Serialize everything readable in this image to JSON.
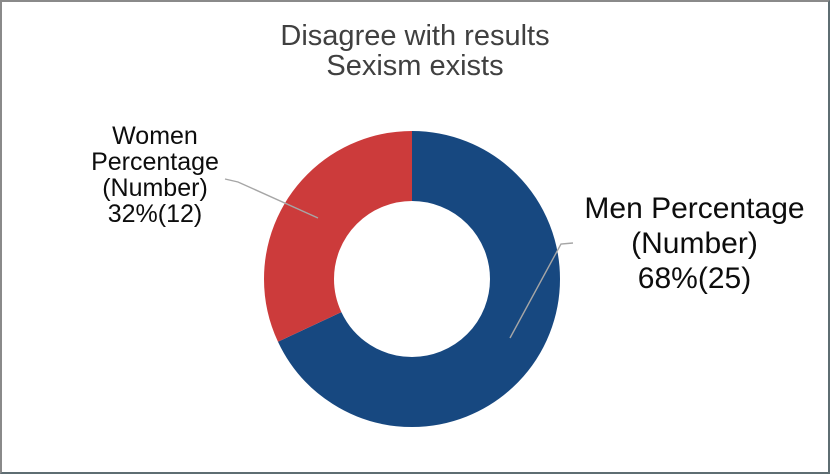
{
  "chart_data": {
    "type": "pie",
    "subtype": "donut",
    "title": "Disagree with results",
    "subtitle": "Sexism exists",
    "start_angle_deg": 0,
    "direction": "clockwise",
    "hole_ratio": 0.53,
    "legend": "none",
    "categories": [
      "Men",
      "Women"
    ],
    "series": [
      {
        "name": "Men",
        "percentage": 68,
        "count": 25,
        "color": "#174880",
        "label_lines": [
          "Men Percentage",
          "(Number)",
          "68%(25)"
        ]
      },
      {
        "name": "Women",
        "percentage": 32,
        "count": 12,
        "color": "#cc3b3b",
        "label_lines": [
          "Women",
          "Percentage",
          "(Number)",
          "32%(12)"
        ]
      }
    ],
    "colors": {
      "title_text": "#404040",
      "label_text": "#0d0d0d",
      "leader_line": "#a6a6a6",
      "background": "#ffffff"
    }
  }
}
